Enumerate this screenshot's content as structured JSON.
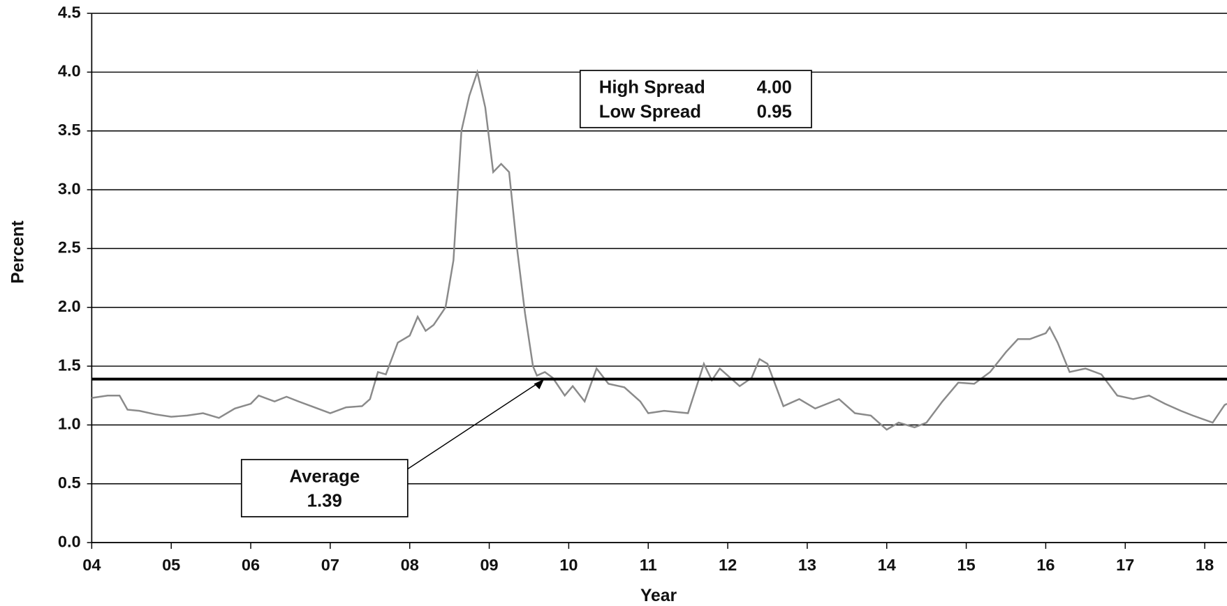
{
  "chart_data": {
    "type": "line",
    "x_label": "Year",
    "y_label": "Percent",
    "xlim": [
      4,
      18.28
    ],
    "xticks": [
      {
        "value": 4,
        "label": "04"
      },
      {
        "value": 5,
        "label": "05"
      },
      {
        "value": 6,
        "label": "06"
      },
      {
        "value": 7,
        "label": "07"
      },
      {
        "value": 8,
        "label": "08"
      },
      {
        "value": 9,
        "label": "09"
      },
      10,
      11,
      12,
      13,
      14,
      15,
      16,
      17,
      18
    ],
    "ylim": [
      0,
      4.5
    ],
    "yticks": [
      {
        "value": 0,
        "label": "0.0"
      },
      0.5,
      {
        "value": 1,
        "label": "1.0"
      },
      1.5,
      {
        "value": 2,
        "label": "2.0"
      },
      2.5,
      {
        "value": 3,
        "label": "3.0"
      },
      3.5,
      {
        "value": 4,
        "label": "4.0"
      },
      4.5
    ],
    "grid": true,
    "series": [
      {
        "color": "#8a8a8a",
        "x": [
          4.0,
          4.2,
          4.35,
          4.45,
          4.6,
          4.8,
          5.0,
          5.2,
          5.4,
          5.6,
          5.8,
          6.0,
          6.1,
          6.3,
          6.45,
          6.6,
          6.8,
          7.0,
          7.2,
          7.4,
          7.5,
          7.6,
          7.7,
          7.85,
          8.0,
          8.1,
          8.2,
          8.3,
          8.45,
          8.55,
          8.65,
          8.75,
          8.85,
          8.95,
          9.05,
          9.15,
          9.25,
          9.35,
          9.45,
          9.55,
          9.6,
          9.7,
          9.8,
          9.95,
          10.05,
          10.2,
          10.35,
          10.5,
          10.7,
          10.9,
          11.0,
          11.2,
          11.5,
          11.7,
          11.8,
          11.9,
          12.0,
          12.15,
          12.3,
          12.4,
          12.5,
          12.7,
          12.9,
          13.1,
          13.4,
          13.6,
          13.8,
          14.0,
          14.15,
          14.35,
          14.5,
          14.7,
          14.9,
          15.1,
          15.3,
          15.5,
          15.65,
          15.8,
          16.0,
          16.05,
          16.15,
          16.3,
          16.5,
          16.7,
          16.9,
          17.1,
          17.3,
          17.5,
          17.7,
          17.85,
          18.1,
          18.25,
          18.28
        ],
        "values": [
          1.23,
          1.25,
          1.25,
          1.13,
          1.12,
          1.09,
          1.07,
          1.08,
          1.1,
          1.06,
          1.14,
          1.18,
          1.25,
          1.2,
          1.24,
          1.2,
          1.15,
          1.1,
          1.15,
          1.16,
          1.22,
          1.45,
          1.43,
          1.7,
          1.76,
          1.92,
          1.8,
          1.85,
          2.0,
          2.4,
          3.5,
          3.8,
          4.0,
          3.7,
          3.15,
          3.22,
          3.15,
          2.5,
          1.95,
          1.5,
          1.42,
          1.45,
          1.4,
          1.25,
          1.33,
          1.2,
          1.48,
          1.35,
          1.32,
          1.2,
          1.1,
          1.12,
          1.1,
          1.52,
          1.38,
          1.48,
          1.42,
          1.33,
          1.4,
          1.56,
          1.52,
          1.16,
          1.22,
          1.14,
          1.22,
          1.1,
          1.08,
          0.96,
          1.02,
          0.98,
          1.02,
          1.2,
          1.36,
          1.35,
          1.45,
          1.62,
          1.73,
          1.73,
          1.78,
          1.83,
          1.7,
          1.45,
          1.48,
          1.43,
          1.25,
          1.22,
          1.25,
          1.18,
          1.12,
          1.08,
          1.02,
          1.17,
          1.18
        ]
      }
    ],
    "average": {
      "label": "Average",
      "value": 1.39
    },
    "spread": {
      "labels": [
        "High Spread",
        "Low Spread"
      ],
      "values": [
        4.0,
        0.95
      ],
      "value_labels": [
        "4.00",
        "0.95"
      ]
    }
  }
}
